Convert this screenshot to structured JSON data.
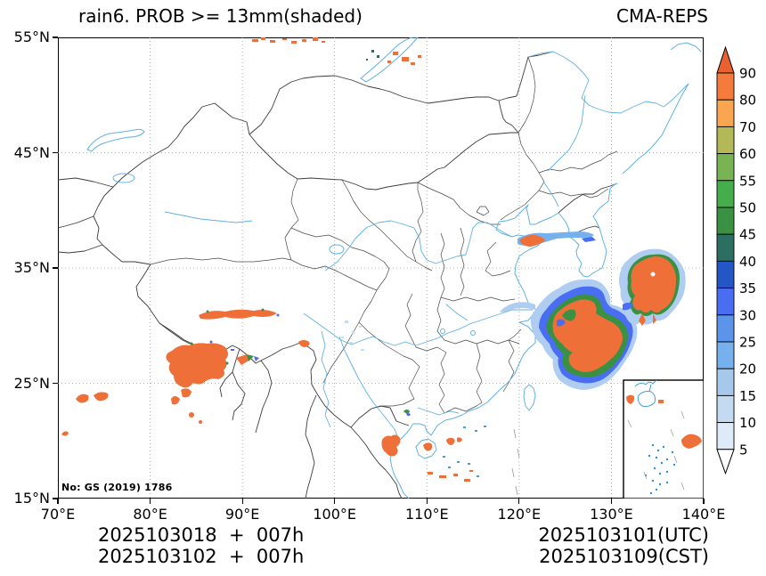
{
  "header": {
    "title": "rain6. PROB >= 13mm(shaded)",
    "model_label": "CMA-REPS"
  },
  "axes": {
    "x_tick_labels": [
      "70°E",
      "80°E",
      "90°E",
      "100°E",
      "110°E",
      "120°E",
      "130°E",
      "140°E"
    ],
    "y_tick_labels": [
      "55°N",
      "45°N",
      "35°N",
      "25°N",
      "15°N"
    ],
    "x_range_deg": [
      70,
      140
    ],
    "y_range_deg": [
      15,
      55
    ],
    "grid": "dotted every 10 degrees"
  },
  "colorbar": {
    "unit": "probability (%)",
    "labels": [
      "90",
      "80",
      "70",
      "60",
      "55",
      "50",
      "45",
      "40",
      "35",
      "30",
      "25",
      "20",
      "15",
      "10",
      "5"
    ],
    "segment_colors": [
      "#f57b3c",
      "#faa54f",
      "#b4b957",
      "#79b454",
      "#46ad4c",
      "#3a9144",
      "#2d6e63",
      "#2456c5",
      "#4a6ef2",
      "#5b94e9",
      "#76b1ee",
      "#a6c8ea",
      "#c4daf1",
      "#deeaf8"
    ],
    "arrow_top_color": "#e8622f",
    "arrow_bottom_color": "#ffffff"
  },
  "watermark": "No: GS (2019) 1786",
  "footer": {
    "left_line1": "2025103018  +  007h",
    "left_line2": "2025103102  +  007h",
    "right_line1": "2025103101(UTC)",
    "right_line2": "2025103109(CST)"
  },
  "map": {
    "colors": {
      "coast_river": "#5fb2e2",
      "country_border": "#3c3c3c",
      "province_border": "#4a4a4a",
      "gridline": "#9a9a9a",
      "prob_high_orange": "#ee6f38",
      "prob_mid_green": "#3a9144",
      "prob_low_blue": "#4a6ef2",
      "prob_halo_blue": "#aecdf1"
    },
    "shaded_regions": [
      {
        "name": "east-china-sea-system",
        "approx": "124-136E, 27-35N",
        "max_band": ">90"
      },
      {
        "name": "shandong-peninsula-patch",
        "approx": "119-122E, 37-38N",
        "max_band": ">90"
      },
      {
        "name": "tibet-streak",
        "approx": "85-92E, 30-31N",
        "max_band": ">90"
      },
      {
        "name": "tibet-blob",
        "approx": "81-88E, 24-28N",
        "max_band": ">90"
      },
      {
        "name": "west-edge-patches",
        "approx": "72-75E, 23-24N",
        "max_band": ">90"
      },
      {
        "name": "hainan-vietnam-patches",
        "approx": "105-112E, 16-22N",
        "max_band": ">90"
      },
      {
        "name": "lake-baikal-speckles",
        "approx": "97-110E, 53-55N",
        "max_band": ">90"
      }
    ]
  }
}
